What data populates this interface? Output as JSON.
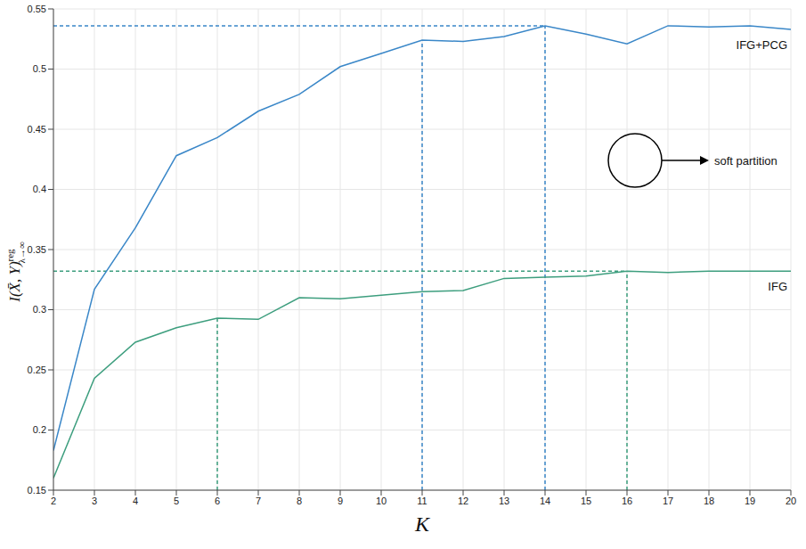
{
  "chart_data": {
    "type": "line",
    "xlabel": "K",
    "ylabel": "I(X̄, Y)",
    "ylabel_sup": "reg",
    "ylabel_sub": "λ→∞",
    "x": [
      2,
      3,
      4,
      5,
      6,
      7,
      8,
      9,
      10,
      11,
      12,
      13,
      14,
      15,
      16,
      17,
      18,
      19,
      20
    ],
    "series": [
      {
        "name": "IFG+PCG",
        "color": "#3a87c8",
        "values": [
          0.183,
          0.317,
          0.368,
          0.428,
          0.443,
          0.465,
          0.479,
          0.502,
          0.513,
          0.524,
          0.523,
          0.527,
          0.536,
          0.529,
          0.521,
          0.536,
          0.535,
          0.536,
          0.533
        ],
        "highlights": [
          11,
          14
        ]
      },
      {
        "name": "IFG",
        "color": "#3d9e7e",
        "values": [
          0.16,
          0.243,
          0.273,
          0.285,
          0.293,
          0.292,
          0.31,
          0.309,
          0.312,
          0.315,
          0.316,
          0.326,
          0.327,
          0.328,
          0.332,
          0.331,
          0.332,
          0.332,
          0.332
        ],
        "highlights": [
          6,
          16
        ]
      }
    ],
    "xlim": [
      2,
      20
    ],
    "xticks": [
      2,
      3,
      4,
      5,
      6,
      7,
      8,
      9,
      10,
      11,
      12,
      13,
      14,
      15,
      16,
      17,
      18,
      19,
      20
    ],
    "ylim": [
      0.15,
      0.55
    ],
    "yticks": [
      0.15,
      0.2,
      0.25,
      0.3,
      0.35,
      0.4,
      0.45,
      0.5,
      0.55
    ],
    "grid": true,
    "annotation": "soft partition"
  }
}
